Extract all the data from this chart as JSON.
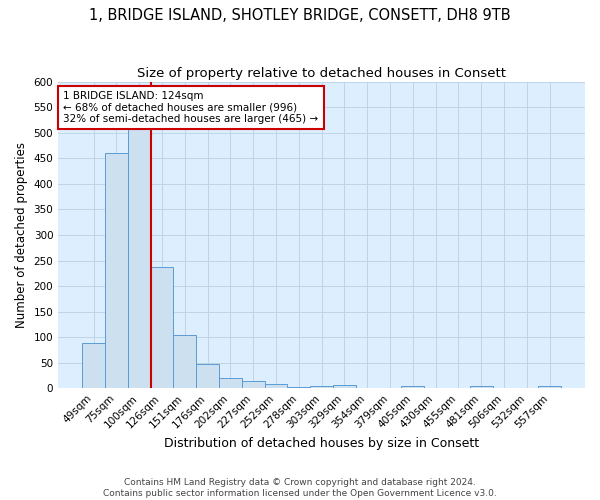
{
  "title": "1, BRIDGE ISLAND, SHOTLEY BRIDGE, CONSETT, DH8 9TB",
  "subtitle": "Size of property relative to detached houses in Consett",
  "xlabel": "Distribution of detached houses by size in Consett",
  "ylabel": "Number of detached properties",
  "bar_labels": [
    "49sqm",
    "75sqm",
    "100sqm",
    "126sqm",
    "151sqm",
    "176sqm",
    "202sqm",
    "227sqm",
    "252sqm",
    "278sqm",
    "303sqm",
    "329sqm",
    "354sqm",
    "379sqm",
    "405sqm",
    "430sqm",
    "455sqm",
    "481sqm",
    "506sqm",
    "532sqm",
    "557sqm"
  ],
  "bar_values": [
    88,
    460,
    550,
    237,
    105,
    47,
    20,
    14,
    8,
    2,
    5,
    6,
    1,
    0,
    4,
    0,
    0,
    4,
    0,
    0,
    4
  ],
  "bar_color": "#cce0f0",
  "bar_edge_color": "#5b9bd5",
  "vline_x": 2.5,
  "vline_color": "#cc0000",
  "annotation_text": "1 BRIDGE ISLAND: 124sqm\n← 68% of detached houses are smaller (996)\n32% of semi-detached houses are larger (465) →",
  "annotation_box_color": "white",
  "annotation_box_edge": "#cc0000",
  "ylim": [
    0,
    600
  ],
  "yticks": [
    0,
    50,
    100,
    150,
    200,
    250,
    300,
    350,
    400,
    450,
    500,
    550,
    600
  ],
  "grid_color": "#c0d4e8",
  "bg_color": "#ddeeff",
  "footer": "Contains HM Land Registry data © Crown copyright and database right 2024.\nContains public sector information licensed under the Open Government Licence v3.0.",
  "title_fontsize": 10.5,
  "subtitle_fontsize": 9.5,
  "xlabel_fontsize": 9,
  "ylabel_fontsize": 8.5,
  "tick_fontsize": 7.5,
  "footer_fontsize": 6.5,
  "ann_fontsize": 7.5
}
